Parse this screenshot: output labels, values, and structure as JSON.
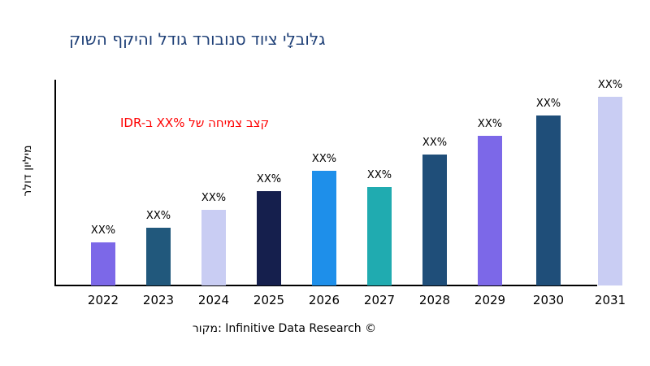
{
  "chart_data": {
    "type": "bar",
    "title": "קושה ףקיהו לדוג דרובונס דויצ ילָבולּג",
    "ylabel": "רלוד ןוילימ",
    "annotation": "IDR-ב XX% לש החימצ בצק",
    "source": "רוקמ: Infinitive Data Research ©",
    "categories": [
      "2022",
      "2023",
      "2024",
      "2025",
      "2026",
      "2027",
      "2028",
      "2029",
      "2030",
      "2031"
    ],
    "value_labels": [
      "XX%",
      "XX%",
      "XX%",
      "XX%",
      "XX%",
      "XX%",
      "XX%",
      "XX%",
      "XX%",
      "XX%"
    ],
    "values_relative_pct": [
      21,
      28,
      37,
      46,
      56,
      48,
      64,
      73,
      83,
      92
    ],
    "bar_colors": [
      "#7C68E8",
      "#21587C",
      "#C9CDF3",
      "#151F4D",
      "#1E8FEA",
      "#20ABB0",
      "#1F4E79",
      "#7C68E8",
      "#1F4E79",
      "#C9CDF3"
    ],
    "colors": {
      "title": "#1F4077",
      "annotation": "#FF0000",
      "axis": "#000000",
      "text": "#000000"
    },
    "legend": "none",
    "grid": "off",
    "y_tick_labels": []
  }
}
